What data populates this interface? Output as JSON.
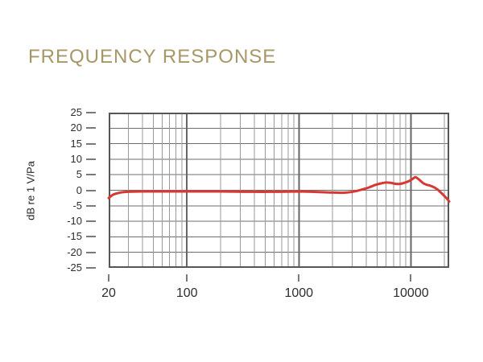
{
  "header": {
    "title_color": "#a79767"
  },
  "chart_data": {
    "type": "line",
    "title": "FREQUENCY RESPONSE",
    "xlabel": "",
    "ylabel": "dB re 1 V/Pa",
    "x_scale": "log",
    "x_range_hz": [
      20,
      22000
    ],
    "ylim": [
      -25,
      25
    ],
    "y_tick_step": 5,
    "y_ticks": [
      25,
      20,
      15,
      10,
      5,
      0,
      -5,
      -10,
      -15,
      -20,
      -25
    ],
    "x_ticks": [
      20,
      100,
      1000,
      10000
    ],
    "grid": "on",
    "legend": "none",
    "colors": {
      "line": "#d93832",
      "grid_horizontal": "#6e6e6e",
      "grid_vertical_minor": "#9a9a9a",
      "grid_vertical_major": "#666666",
      "frame": "#565656",
      "tick_mark": "#7a7a7a",
      "tick_label": "#2e2e2e"
    },
    "series": [
      {
        "name": "frequency-response",
        "points_hz_db": [
          [
            20,
            -2.5
          ],
          [
            22,
            -1.4
          ],
          [
            25,
            -0.8
          ],
          [
            28,
            -0.55
          ],
          [
            32,
            -0.45
          ],
          [
            40,
            -0.4
          ],
          [
            55,
            -0.4
          ],
          [
            75,
            -0.4
          ],
          [
            100,
            -0.4
          ],
          [
            140,
            -0.4
          ],
          [
            200,
            -0.4
          ],
          [
            280,
            -0.45
          ],
          [
            400,
            -0.5
          ],
          [
            550,
            -0.5
          ],
          [
            750,
            -0.45
          ],
          [
            1000,
            -0.4
          ],
          [
            1300,
            -0.5
          ],
          [
            1700,
            -0.65
          ],
          [
            2100,
            -0.75
          ],
          [
            2500,
            -0.8
          ],
          [
            2900,
            -0.6
          ],
          [
            3300,
            -0.2
          ],
          [
            3800,
            0.4
          ],
          [
            4300,
            1.0
          ],
          [
            4800,
            1.7
          ],
          [
            5400,
            2.2
          ],
          [
            6000,
            2.5
          ],
          [
            6600,
            2.4
          ],
          [
            7200,
            2.1
          ],
          [
            7800,
            2.0
          ],
          [
            8400,
            2.2
          ],
          [
            9100,
            2.6
          ],
          [
            9800,
            3.1
          ],
          [
            10500,
            3.8
          ],
          [
            11000,
            4.2
          ],
          [
            11600,
            3.7
          ],
          [
            12300,
            2.9
          ],
          [
            13000,
            2.2
          ],
          [
            13800,
            1.8
          ],
          [
            14800,
            1.5
          ],
          [
            16000,
            1.0
          ],
          [
            17200,
            0.3
          ],
          [
            18500,
            -0.7
          ],
          [
            20000,
            -1.9
          ],
          [
            21000,
            -2.7
          ],
          [
            22000,
            -3.6
          ]
        ]
      }
    ]
  }
}
